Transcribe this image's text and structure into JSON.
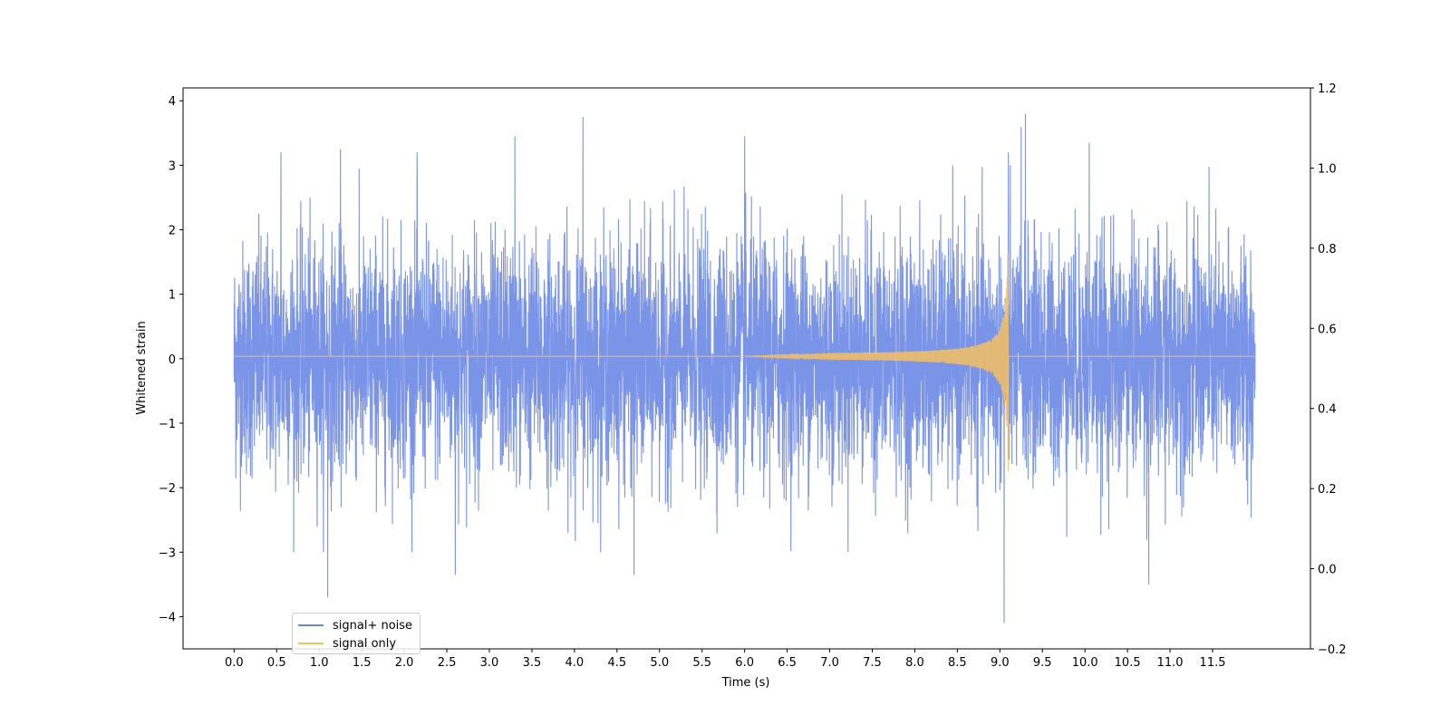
{
  "chart_data": {
    "type": "line",
    "xlabel": "Time (s)",
    "ylabel": "Whitened strain",
    "xlim": [
      -0.6,
      12.65
    ],
    "ylim": [
      -4.5,
      4.2
    ],
    "y2lim": [
      -0.2,
      1.2
    ],
    "x_ticks": [
      0.0,
      0.5,
      1.0,
      1.5,
      2.0,
      2.5,
      3.0,
      3.5,
      4.0,
      4.5,
      5.0,
      5.5,
      6.0,
      6.5,
      7.0,
      7.5,
      8.0,
      8.5,
      9.0,
      9.5,
      10.0,
      10.5,
      11.0,
      11.5
    ],
    "x_tick_labels": [
      "0.0",
      "0.5",
      "1.0",
      "1.5",
      "2.0",
      "2.5",
      "3.0",
      "3.5",
      "4.0",
      "4.5",
      "5.0",
      "5.5",
      "6.0",
      "6.5",
      "7.0",
      "7.5",
      "8.0",
      "8.5",
      "9.0",
      "9.5",
      "10.0",
      "10.5",
      "11.0",
      "11.5"
    ],
    "y_ticks": [
      4,
      3,
      2,
      1,
      0,
      -1,
      -2,
      -3,
      -4
    ],
    "y_tick_labels": [
      "4",
      "3",
      "2",
      "1",
      "0",
      "−1",
      "−2",
      "−3",
      "−4"
    ],
    "y2_ticks": [
      1.2,
      1.0,
      0.8,
      0.6,
      0.4,
      0.2,
      0.0,
      -0.2
    ],
    "y2_tick_labels": [
      "1.2",
      "1.0",
      "0.8",
      "0.6",
      "0.4",
      "0.2",
      "0.0",
      "−0.2"
    ],
    "grid": false,
    "legend_position": "lower-left",
    "series": [
      {
        "name": "signal+ noise",
        "color": "#6b88e6",
        "x_range": [
          0.0,
          12.0
        ],
        "typical_envelope": [
          -2.0,
          2.3
        ],
        "notable_peaks": [
          {
            "x": 0.55,
            "y": 3.2
          },
          {
            "x": 1.1,
            "y": -3.7
          },
          {
            "x": 1.25,
            "y": 3.25
          },
          {
            "x": 2.15,
            "y": 3.2
          },
          {
            "x": 2.6,
            "y": -3.35
          },
          {
            "x": 3.3,
            "y": 3.45
          },
          {
            "x": 4.1,
            "y": 3.75
          },
          {
            "x": 4.7,
            "y": -3.35
          },
          {
            "x": 6.0,
            "y": 3.45
          },
          {
            "x": 9.05,
            "y": -4.1
          },
          {
            "x": 9.1,
            "y": 3.2
          },
          {
            "x": 9.25,
            "y": 3.6
          },
          {
            "x": 9.3,
            "y": 3.8
          },
          {
            "x": 10.05,
            "y": 3.35
          },
          {
            "x": 10.75,
            "y": -3.5
          }
        ]
      },
      {
        "name": "signal only",
        "color": "#f5c060",
        "axis": "right",
        "x_range": [
          0.0,
          12.0
        ],
        "baseline": 0.53,
        "chirp_start": 6.0,
        "merger_time": 9.1,
        "peak_amplitude": 0.38
      }
    ]
  }
}
